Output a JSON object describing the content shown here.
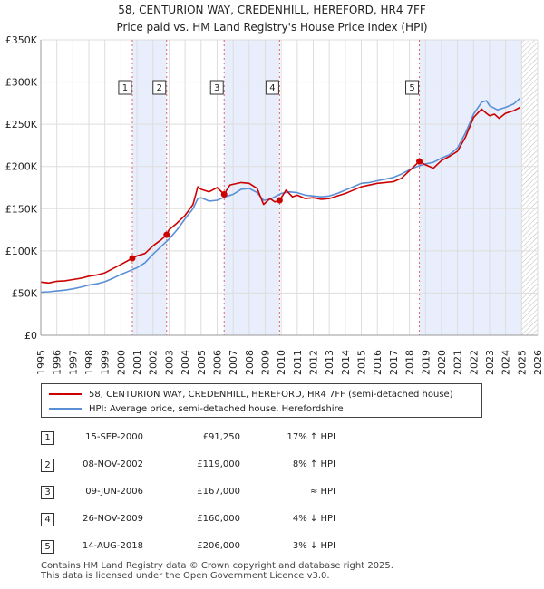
{
  "chart_data": {
    "type": "line",
    "title": "58, CENTURION WAY, CREDENHILL, HEREFORD, HR4 7FF",
    "subtitle": "Price paid vs. HM Land Registry's House Price Index (HPI)",
    "xlabel": "",
    "ylabel": "",
    "xlim": [
      1995,
      2026
    ],
    "ylim": [
      0,
      350000
    ],
    "x_ticks": [
      "1995",
      "1996",
      "1997",
      "1998",
      "1999",
      "2000",
      "2001",
      "2002",
      "2003",
      "2004",
      "2005",
      "2006",
      "2007",
      "2008",
      "2009",
      "2010",
      "2011",
      "2012",
      "2013",
      "2014",
      "2015",
      "2016",
      "2017",
      "2018",
      "2019",
      "2020",
      "2021",
      "2022",
      "2023",
      "2024",
      "2025",
      "2026"
    ],
    "y_ticks": [
      {
        "value": 0,
        "label": "£0"
      },
      {
        "value": 50000,
        "label": "£50K"
      },
      {
        "value": 100000,
        "label": "£100K"
      },
      {
        "value": 150000,
        "label": "£150K"
      },
      {
        "value": 200000,
        "label": "£200K"
      },
      {
        "value": 250000,
        "label": "£250K"
      },
      {
        "value": 300000,
        "label": "£300K"
      },
      {
        "value": 350000,
        "label": "£350K"
      }
    ],
    "grid": true,
    "hatched_future_from": 2025.0,
    "series": [
      {
        "name": "58, CENTURION WAY, CREDENHILL, HEREFORD, HR4 7FF (semi-detached house)",
        "color": "#cc0000",
        "x": [
          1995.0,
          1995.5,
          1996.0,
          1996.5,
          1997.0,
          1997.5,
          1998.0,
          1998.5,
          1999.0,
          1999.5,
          2000.0,
          2000.71,
          2001.0,
          2001.5,
          2002.0,
          2002.5,
          2002.85,
          2003.0,
          2003.5,
          2004.0,
          2004.5,
          2004.8,
          2005.0,
          2005.5,
          2006.0,
          2006.44,
          2006.8,
          2007.5,
          2008.0,
          2008.5,
          2008.9,
          2009.3,
          2009.6,
          2009.9,
          2010.3,
          2010.7,
          2011.0,
          2011.5,
          2012.0,
          2012.5,
          2013.0,
          2013.5,
          2014.0,
          2014.5,
          2015.0,
          2015.5,
          2016.0,
          2016.5,
          2017.0,
          2017.5,
          2018.0,
          2018.62,
          2019.0,
          2019.5,
          2020.0,
          2020.5,
          2021.0,
          2021.5,
          2022.0,
          2022.5,
          2022.8,
          2023.0,
          2023.3,
          2023.6,
          2024.0,
          2024.5,
          2024.9
        ],
        "y": [
          63000,
          62000,
          64000,
          64500,
          66000,
          67500,
          70000,
          71500,
          74000,
          79000,
          84000,
          91250,
          94000,
          97000,
          106000,
          113000,
          119000,
          125000,
          133000,
          142000,
          155000,
          176000,
          173000,
          170000,
          175000,
          167000,
          178000,
          181000,
          180000,
          174000,
          155000,
          162000,
          158000,
          160000,
          172000,
          164000,
          166000,
          162000,
          163000,
          161000,
          162000,
          165000,
          168000,
          172000,
          176000,
          178000,
          180000,
          181000,
          182000,
          186000,
          195000,
          206000,
          202000,
          198000,
          207000,
          212000,
          218000,
          235000,
          258000,
          268000,
          263000,
          260000,
          262000,
          257000,
          263000,
          266000,
          270000
        ]
      },
      {
        "name": "HPI: Average price, semi-detached house, Herefordshire",
        "color": "#5a8fd6",
        "x": [
          1995.0,
          1995.5,
          1996.0,
          1996.5,
          1997.0,
          1997.5,
          1998.0,
          1998.5,
          1999.0,
          1999.5,
          2000.0,
          2000.5,
          2001.0,
          2001.5,
          2002.0,
          2002.5,
          2003.0,
          2003.5,
          2004.0,
          2004.5,
          2004.8,
          2005.0,
          2005.5,
          2006.0,
          2006.5,
          2007.0,
          2007.5,
          2008.0,
          2008.5,
          2008.9,
          2009.3,
          2009.6,
          2010.0,
          2010.5,
          2011.0,
          2011.5,
          2012.0,
          2012.5,
          2013.0,
          2013.5,
          2014.0,
          2014.5,
          2015.0,
          2015.5,
          2016.0,
          2016.5,
          2017.0,
          2017.5,
          2018.0,
          2018.5,
          2019.0,
          2019.5,
          2020.0,
          2020.5,
          2021.0,
          2021.5,
          2022.0,
          2022.5,
          2022.8,
          2023.0,
          2023.5,
          2024.0,
          2024.5,
          2024.9
        ],
        "y": [
          51000,
          51500,
          52500,
          53500,
          55000,
          57000,
          59500,
          61000,
          63500,
          67500,
          72000,
          76000,
          80000,
          86000,
          96000,
          105000,
          114000,
          125000,
          138000,
          150000,
          162000,
          163000,
          159000,
          160000,
          164000,
          167000,
          173000,
          174000,
          169000,
          160000,
          161000,
          164000,
          168000,
          170000,
          169000,
          166000,
          165000,
          164000,
          165000,
          168000,
          172000,
          176000,
          180000,
          181000,
          183000,
          185000,
          187000,
          191000,
          196000,
          200000,
          203000,
          205000,
          210000,
          214000,
          222000,
          240000,
          262000,
          276000,
          278000,
          272000,
          267000,
          270000,
          274000,
          281000
        ]
      }
    ],
    "sales": [
      {
        "num": "1",
        "date": "15-SEP-2000",
        "x": 2000.71,
        "price_value": 91250,
        "price": "£91,250",
        "hpi": "17% ↑ HPI"
      },
      {
        "num": "2",
        "date": "08-NOV-2002",
        "x": 2002.85,
        "price_value": 119000,
        "price": "£119,000",
        "hpi": "8% ↑ HPI"
      },
      {
        "num": "3",
        "date": "09-JUN-2006",
        "x": 2006.44,
        "price_value": 167000,
        "price": "£167,000",
        "hpi": "≈ HPI"
      },
      {
        "num": "4",
        "date": "26-NOV-2009",
        "x": 2009.9,
        "price_value": 160000,
        "price": "£160,000",
        "hpi": "4% ↓ HPI"
      },
      {
        "num": "5",
        "date": "14-AUG-2018",
        "x": 2018.62,
        "price_value": 206000,
        "price": "£206,000",
        "hpi": "3% ↓ HPI"
      }
    ],
    "shaded_ranges": [
      [
        2000.71,
        2002.85
      ],
      [
        2006.44,
        2009.9
      ],
      [
        2018.62,
        2025.0
      ]
    ],
    "legend_position": "bottom"
  },
  "footer": {
    "line1": "Contains HM Land Registry data © Crown copyright and database right 2025.",
    "line2": "This data is licensed under the Open Government Licence v3.0."
  }
}
